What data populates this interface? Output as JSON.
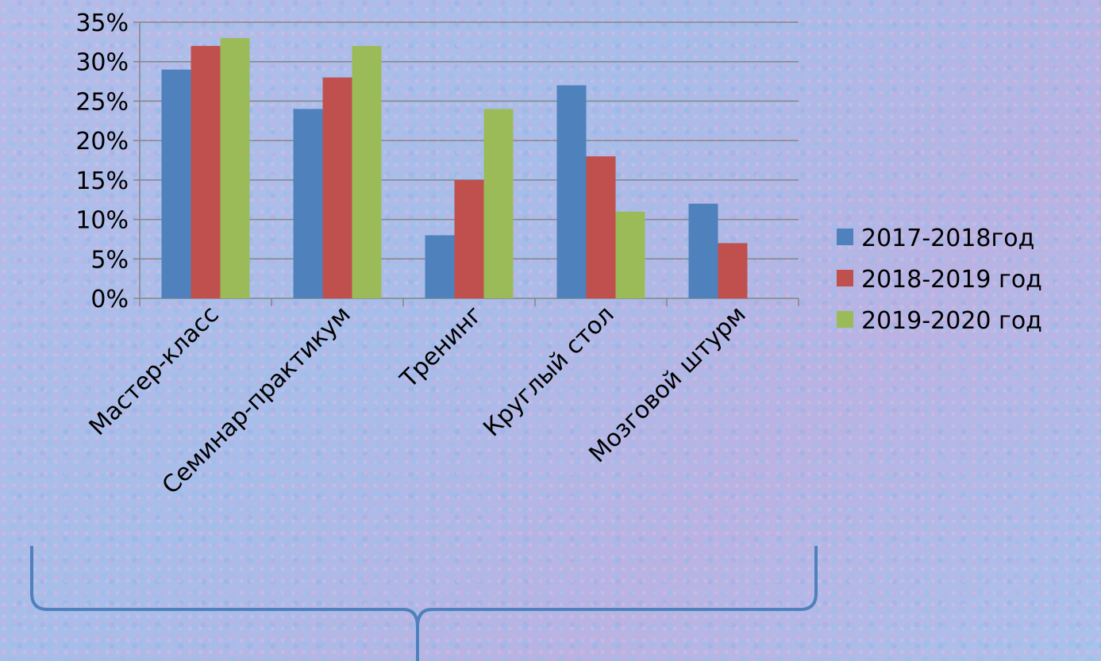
{
  "chart_data": {
    "type": "bar",
    "categories": [
      "Мастер-класс",
      "Семинар-практикум",
      "Тренинг",
      "Круглый стол",
      "Мозговой штурм"
    ],
    "series": [
      {
        "name": "2017-2018год",
        "values": [
          29,
          24,
          8,
          27,
          12
        ],
        "color": "#4f81bd"
      },
      {
        "name": "2018-2019 год",
        "values": [
          32,
          28,
          15,
          18,
          7
        ],
        "color": "#c0504d"
      },
      {
        "name": "2019-2020 год",
        "values": [
          33,
          32,
          24,
          11,
          0
        ],
        "color": "#9bbb59"
      }
    ],
    "yticks": [
      "0%",
      "5%",
      "10%",
      "15%",
      "20%",
      "25%",
      "30%",
      "35%"
    ],
    "ylim": [
      0,
      35
    ],
    "ystep": 5,
    "grid": true,
    "legend_position": "right",
    "title": "",
    "xlabel": "",
    "ylabel": ""
  },
  "decoration": {
    "brace": "curly-brace-bottom",
    "brace_color": "#4f81bd"
  }
}
